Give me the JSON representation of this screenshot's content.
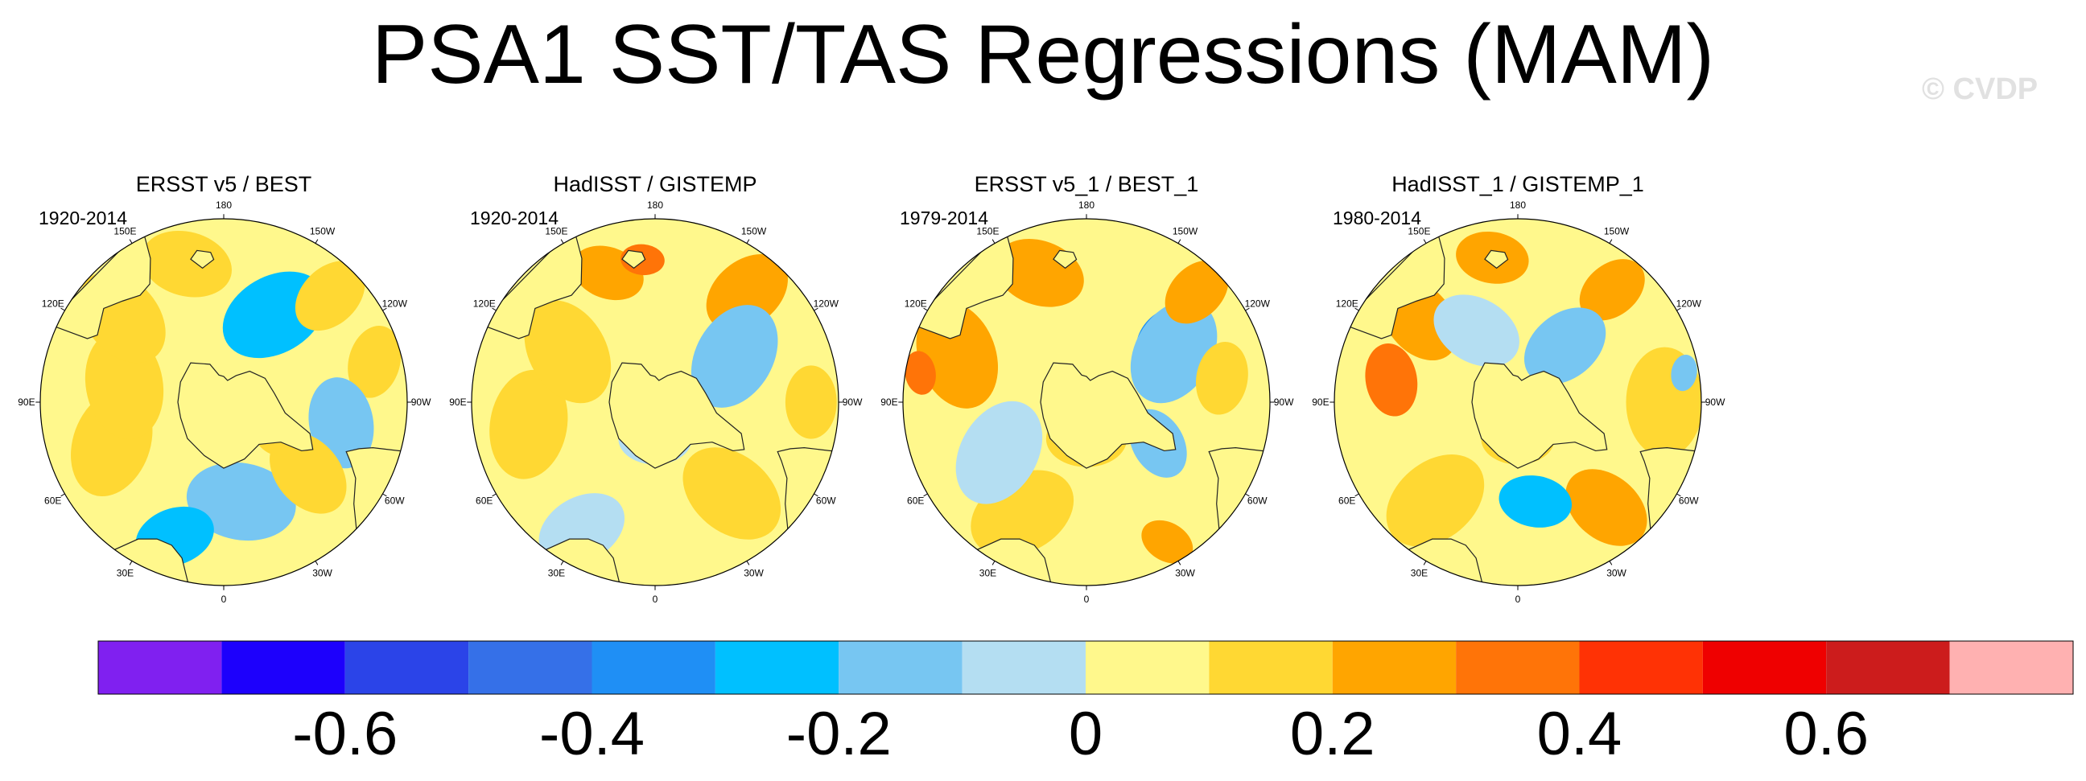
{
  "title": "PSA1 SST/TAS Regressions (MAM)",
  "watermark": "© CVDP",
  "chart_data": {
    "type": "heatmap",
    "projection": "south polar stereographic",
    "panels": [
      {
        "title": "ERSST v5 / BEST",
        "period": "1920-2014"
      },
      {
        "title": "HadISST / GISTEMP",
        "period": "1920-2014"
      },
      {
        "title": "ERSST v5_1 / BEST_1",
        "period": "1979-2014"
      },
      {
        "title": "HadISST_1 / GISTEMP_1",
        "period": "1980-2014"
      }
    ],
    "longitude_labels": [
      {
        "label": "0",
        "lon": 0
      },
      {
        "label": "30E",
        "lon": 30
      },
      {
        "label": "60E",
        "lon": 60
      },
      {
        "label": "90E",
        "lon": 90
      },
      {
        "label": "120E",
        "lon": 120
      },
      {
        "label": "150E",
        "lon": 150
      },
      {
        "label": "180",
        "lon": 180
      },
      {
        "label": "150W",
        "lon": -150
      },
      {
        "label": "120W",
        "lon": -120
      },
      {
        "label": "90W",
        "lon": -90
      },
      {
        "label": "60W",
        "lon": -60
      },
      {
        "label": "30W",
        "lon": -30
      }
    ],
    "colorbar": {
      "levels": [
        -0.7,
        -0.6,
        -0.5,
        -0.4,
        -0.3,
        -0.2,
        -0.1,
        0,
        0.1,
        0.2,
        0.3,
        0.4,
        0.5,
        0.6,
        0.7
      ],
      "colors": [
        "#8020f0",
        "#1d00fc",
        "#2b44e8",
        "#3570e8",
        "#1f8ff5",
        "#00c0ff",
        "#77c6f2",
        "#b4def2",
        "#fff88c",
        "#ffd833",
        "#ffa500",
        "#ff7408",
        "#ff3205",
        "#ef0000",
        "#cc1c1c",
        "#ffb1b1"
      ],
      "tick_labels": [
        {
          "label": "-0.6",
          "value": -0.6
        },
        {
          "label": "-0.4",
          "value": -0.4
        },
        {
          "label": "-0.2",
          "value": -0.2
        },
        {
          "label": "0",
          "value": 0
        },
        {
          "label": "0.2",
          "value": 0.2
        },
        {
          "label": "0.4",
          "value": 0.4
        },
        {
          "label": "0.6",
          "value": 0.6
        }
      ]
    },
    "blobs": [
      [
        {
          "lon": -10,
          "r": 0.55,
          "s": 0.3,
          "v": -0.15
        },
        {
          "lon": 20,
          "r": 0.78,
          "s": 0.22,
          "v": -0.25
        },
        {
          "lon": 70,
          "r": 0.65,
          "s": 0.3,
          "v": 0.15
        },
        {
          "lon": 100,
          "r": 0.55,
          "s": 0.3,
          "v": 0.1
        },
        {
          "lon": 130,
          "r": 0.72,
          "s": 0.28,
          "v": 0.15
        },
        {
          "lon": 165,
          "r": 0.78,
          "s": 0.25,
          "v": 0.15
        },
        {
          "lon": -150,
          "r": 0.55,
          "s": 0.3,
          "v": -0.25
        },
        {
          "lon": -135,
          "r": 0.82,
          "s": 0.22,
          "v": 0.15
        },
        {
          "lon": -105,
          "r": 0.85,
          "s": 0.2,
          "v": 0.1
        },
        {
          "lon": -80,
          "r": 0.65,
          "s": 0.25,
          "v": -0.15
        },
        {
          "lon": -50,
          "r": 0.6,
          "s": 0.25,
          "v": 0.1
        },
        {
          "lon": -60,
          "r": 0.3,
          "s": 0.15,
          "v": 0.15
        },
        {
          "lon": 0,
          "r": 0.15,
          "s": 0.2,
          "v": 0.1
        }
      ],
      [
        {
          "lon": 30,
          "r": 0.8,
          "s": 0.25,
          "v": -0.1
        },
        {
          "lon": -40,
          "r": 0.65,
          "s": 0.3,
          "v": 0.1
        },
        {
          "lon": 80,
          "r": 0.7,
          "s": 0.3,
          "v": 0.1
        },
        {
          "lon": 160,
          "r": 0.75,
          "s": 0.2,
          "v": 0.25
        },
        {
          "lon": 175,
          "r": 0.78,
          "s": 0.12,
          "v": 0.3
        },
        {
          "lon": -140,
          "r": 0.78,
          "s": 0.25,
          "v": 0.2
        },
        {
          "lon": -120,
          "r": 0.5,
          "s": 0.3,
          "v": -0.15
        },
        {
          "lon": 120,
          "r": 0.55,
          "s": 0.3,
          "v": 0.1
        },
        {
          "lon": -90,
          "r": 0.85,
          "s": 0.2,
          "v": 0.1
        },
        {
          "lon": 0,
          "r": 0.2,
          "s": 0.2,
          "v": -0.1
        }
      ],
      [
        {
          "lon": -130,
          "r": 0.55,
          "s": 0.18,
          "v": -0.35
        },
        {
          "lon": -120,
          "r": 0.55,
          "s": 0.3,
          "v": -0.2
        },
        {
          "lon": -135,
          "r": 0.85,
          "s": 0.2,
          "v": 0.25
        },
        {
          "lon": -100,
          "r": 0.75,
          "s": 0.2,
          "v": 0.15
        },
        {
          "lon": -30,
          "r": 0.88,
          "s": 0.15,
          "v": 0.25
        },
        {
          "lon": 30,
          "r": 0.7,
          "s": 0.3,
          "v": 0.1
        },
        {
          "lon": 60,
          "r": 0.55,
          "s": 0.3,
          "v": -0.1
        },
        {
          "lon": 110,
          "r": 0.75,
          "s": 0.3,
          "v": 0.25
        },
        {
          "lon": 100,
          "r": 0.92,
          "s": 0.12,
          "v": 0.35
        },
        {
          "lon": 160,
          "r": 0.75,
          "s": 0.25,
          "v": 0.2
        },
        {
          "lon": 0,
          "r": 0.2,
          "s": 0.22,
          "v": 0.1
        },
        {
          "lon": -60,
          "r": 0.45,
          "s": 0.2,
          "v": -0.15
        }
      ],
      [
        {
          "lon": -40,
          "r": 0.75,
          "s": 0.25,
          "v": 0.2
        },
        {
          "lon": -10,
          "r": 0.55,
          "s": 0.2,
          "v": -0.25
        },
        {
          "lon": 40,
          "r": 0.7,
          "s": 0.3,
          "v": 0.15
        },
        {
          "lon": 100,
          "r": 0.7,
          "s": 0.2,
          "v": 0.3
        },
        {
          "lon": 130,
          "r": 0.7,
          "s": 0.25,
          "v": 0.25
        },
        {
          "lon": 170,
          "r": 0.8,
          "s": 0.2,
          "v": 0.25
        },
        {
          "lon": -140,
          "r": 0.8,
          "s": 0.2,
          "v": 0.2
        },
        {
          "lon": -90,
          "r": 0.8,
          "s": 0.3,
          "v": 0.1
        },
        {
          "lon": -100,
          "r": 0.92,
          "s": 0.1,
          "v": -0.15
        },
        {
          "lon": -140,
          "r": 0.4,
          "s": 0.25,
          "v": -0.15
        },
        {
          "lon": 150,
          "r": 0.45,
          "s": 0.25,
          "v": -0.1
        },
        {
          "lon": 0,
          "r": 0.2,
          "s": 0.2,
          "v": 0.1
        }
      ]
    ],
    "background_value": 0.05
  }
}
